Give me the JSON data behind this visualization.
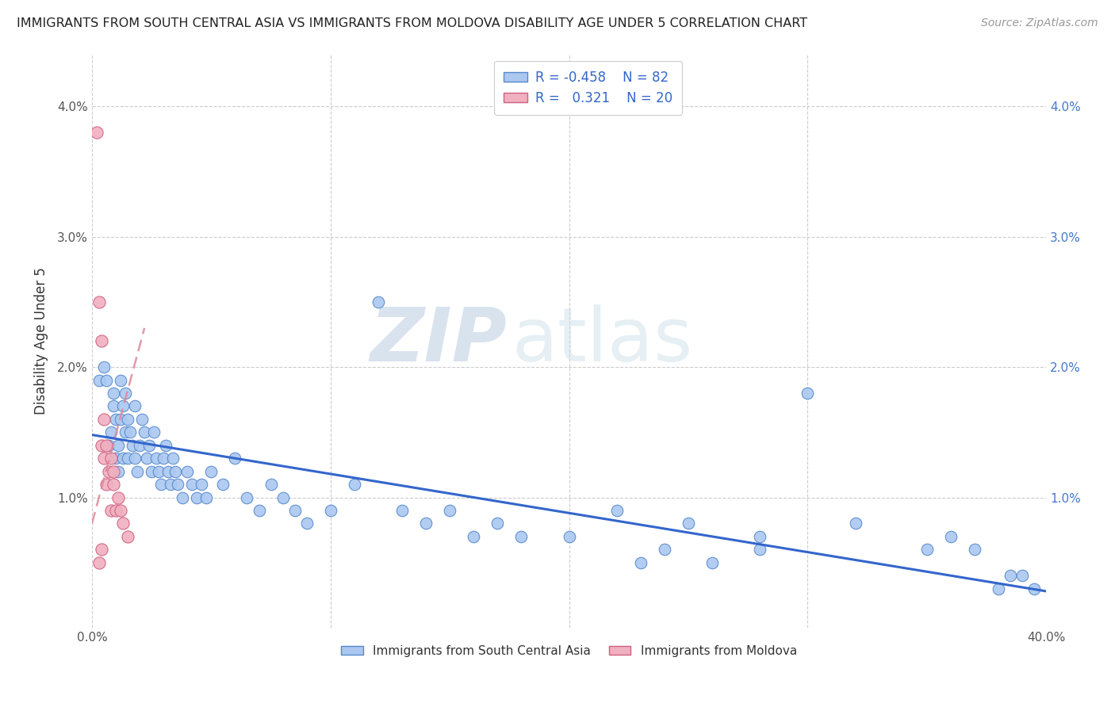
{
  "title": "IMMIGRANTS FROM SOUTH CENTRAL ASIA VS IMMIGRANTS FROM MOLDOVA DISABILITY AGE UNDER 5 CORRELATION CHART",
  "source": "Source: ZipAtlas.com",
  "ylabel": "Disability Age Under 5",
  "xlim": [
    0.0,
    0.4
  ],
  "ylim": [
    0.0,
    0.044
  ],
  "yticks": [
    0.0,
    0.01,
    0.02,
    0.03,
    0.04
  ],
  "xticks": [
    0.0,
    0.1,
    0.2,
    0.3,
    0.4
  ],
  "color_blue_fill": "#aac8f0",
  "color_blue_edge": "#5588cc",
  "color_pink_fill": "#f0b0c0",
  "color_pink_edge": "#d06080",
  "color_blue_trend": "#3366cc",
  "color_pink_trend": "#dd8899",
  "watermark_zip_color": "#c8d8e8",
  "watermark_atlas_color": "#c8d8e8",
  "blue_trend_x": [
    0.0,
    0.4
  ],
  "blue_trend_y": [
    0.0148,
    0.0028
  ],
  "pink_trend_x": [
    0.0,
    0.022
  ],
  "pink_trend_y": [
    0.008,
    0.023
  ],
  "blue_x": [
    0.003,
    0.005,
    0.006,
    0.007,
    0.008,
    0.009,
    0.009,
    0.01,
    0.01,
    0.011,
    0.011,
    0.012,
    0.012,
    0.013,
    0.013,
    0.014,
    0.014,
    0.015,
    0.015,
    0.016,
    0.017,
    0.018,
    0.018,
    0.019,
    0.02,
    0.021,
    0.022,
    0.023,
    0.024,
    0.025,
    0.026,
    0.027,
    0.028,
    0.029,
    0.03,
    0.031,
    0.032,
    0.033,
    0.034,
    0.035,
    0.036,
    0.038,
    0.04,
    0.042,
    0.044,
    0.046,
    0.048,
    0.05,
    0.055,
    0.06,
    0.065,
    0.07,
    0.075,
    0.08,
    0.085,
    0.09,
    0.1,
    0.11,
    0.12,
    0.13,
    0.14,
    0.15,
    0.16,
    0.17,
    0.18,
    0.2,
    0.22,
    0.25,
    0.28,
    0.3,
    0.32,
    0.35,
    0.36,
    0.37,
    0.38,
    0.385,
    0.39,
    0.395,
    0.28,
    0.26,
    0.24,
    0.23
  ],
  "blue_y": [
    0.019,
    0.02,
    0.019,
    0.014,
    0.015,
    0.017,
    0.018,
    0.013,
    0.016,
    0.014,
    0.012,
    0.016,
    0.019,
    0.013,
    0.017,
    0.018,
    0.015,
    0.016,
    0.013,
    0.015,
    0.014,
    0.017,
    0.013,
    0.012,
    0.014,
    0.016,
    0.015,
    0.013,
    0.014,
    0.012,
    0.015,
    0.013,
    0.012,
    0.011,
    0.013,
    0.014,
    0.012,
    0.011,
    0.013,
    0.012,
    0.011,
    0.01,
    0.012,
    0.011,
    0.01,
    0.011,
    0.01,
    0.012,
    0.011,
    0.013,
    0.01,
    0.009,
    0.011,
    0.01,
    0.009,
    0.008,
    0.009,
    0.011,
    0.025,
    0.009,
    0.008,
    0.009,
    0.007,
    0.008,
    0.007,
    0.007,
    0.009,
    0.008,
    0.007,
    0.018,
    0.008,
    0.006,
    0.007,
    0.006,
    0.003,
    0.004,
    0.004,
    0.003,
    0.006,
    0.005,
    0.006,
    0.005
  ],
  "pink_x": [
    0.002,
    0.003,
    0.004,
    0.004,
    0.005,
    0.005,
    0.006,
    0.006,
    0.007,
    0.008,
    0.008,
    0.009,
    0.009,
    0.01,
    0.011,
    0.012,
    0.013,
    0.015,
    0.003,
    0.004
  ],
  "pink_y": [
    0.038,
    0.025,
    0.014,
    0.022,
    0.016,
    0.013,
    0.014,
    0.011,
    0.012,
    0.013,
    0.009,
    0.012,
    0.011,
    0.009,
    0.01,
    0.009,
    0.008,
    0.007,
    0.005,
    0.006
  ]
}
